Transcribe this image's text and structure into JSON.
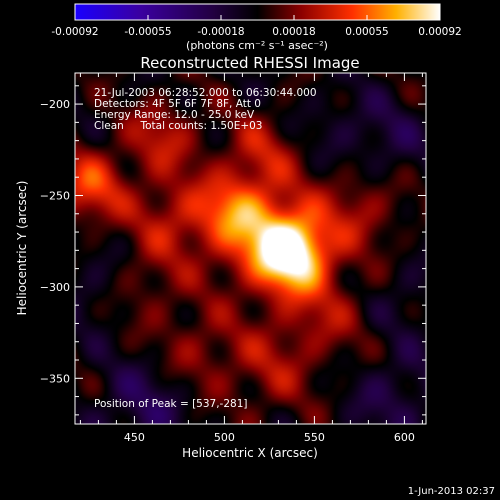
{
  "chart_data": {
    "type": "heatmap",
    "title": "Reconstructed RHESSI Image",
    "xlabel": "Heliocentric X (arcsec)",
    "ylabel": "Heliocentric Y (arcsec)",
    "xlim": [
      417,
      612
    ],
    "ylim": [
      -375,
      -183
    ],
    "xticks": [
      450,
      500,
      550,
      600
    ],
    "yticks": [
      -200,
      -250,
      -300,
      -350
    ],
    "colorbar": {
      "ticks": [
        "-0.00092",
        "-0.00055",
        "-0.00018",
        "0.00018",
        "0.00055",
        "0.00092"
      ],
      "label": "(photons cm⁻² s⁻¹ asec⁻²)",
      "range": [
        -0.00092,
        0.00092
      ]
    },
    "annotations": [
      "21-Jul-2003 06:28:52.000 to 06:30:44.000",
      "Detectors: 4F 5F 6F 7F 8F, Att 0",
      "Energy Range: 12.0 - 25.0 keV",
      "Clean     Total counts: 1.50E+03"
    ],
    "peak_label": "Position of Peak = [537,-281]",
    "peak": {
      "x": 537,
      "y": -281,
      "value": 0.00092
    },
    "sources": [
      {
        "x": 537,
        "y": -281,
        "amp": 0.00092,
        "sigma": 14
      },
      {
        "x": 520,
        "y": -270,
        "amp": 0.00038,
        "sigma": 22
      },
      {
        "x": 505,
        "y": -258,
        "amp": 0.00035,
        "sigma": 14
      },
      {
        "x": 470,
        "y": -262,
        "amp": 0.00028,
        "sigma": 16
      },
      {
        "x": 425,
        "y": -245,
        "amp": 0.00045,
        "sigma": 14
      },
      {
        "x": 465,
        "y": -218,
        "amp": 0.0003,
        "sigma": 14
      },
      {
        "x": 520,
        "y": -225,
        "amp": 0.00025,
        "sigma": 14
      },
      {
        "x": 575,
        "y": -258,
        "amp": 0.00025,
        "sigma": 16
      },
      {
        "x": 555,
        "y": -315,
        "amp": 0.00022,
        "sigma": 18
      },
      {
        "x": 525,
        "y": -345,
        "amp": 0.00022,
        "sigma": 18
      },
      {
        "x": 485,
        "y": -335,
        "amp": 0.0002,
        "sigma": 16
      },
      {
        "x": 455,
        "y": -300,
        "amp": 0.00018,
        "sigma": 16
      },
      {
        "x": 455,
        "y": -365,
        "amp": -0.00025,
        "sigma": 18
      },
      {
        "x": 595,
        "y": -360,
        "amp": -0.0002,
        "sigma": 18
      },
      {
        "x": 590,
        "y": -220,
        "amp": -0.00018,
        "sigma": 16
      },
      {
        "x": 430,
        "y": -300,
        "amp": -0.00015,
        "sigma": 16
      },
      {
        "x": 560,
        "y": -210,
        "amp": -0.0001,
        "sigma": 14
      },
      {
        "x": 600,
        "y": -305,
        "amp": -0.00012,
        "sigma": 14
      }
    ]
  },
  "footer": {
    "timestamp": "1-Jun-2013 02:37"
  }
}
